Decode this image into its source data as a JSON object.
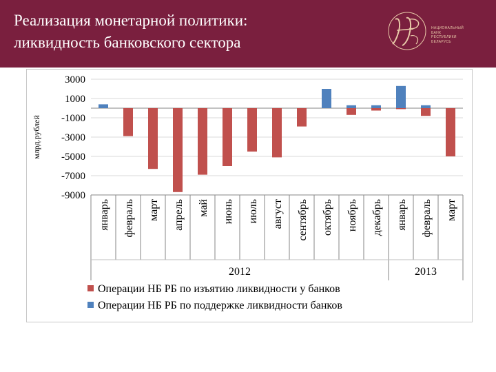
{
  "header": {
    "title_line1": "Реализация монетарной политики:",
    "title_line2": "ликвидность банковского сектора",
    "logo_lines": [
      "НАЦИОНАЛЬНЫЙ",
      "БАНК",
      "РЕСПУБЛИКИ",
      "БЕЛАРУСЬ"
    ]
  },
  "colors": {
    "header_bg": "#7a1f3e",
    "withdrawal": "#c0504d",
    "support": "#4f81bd"
  },
  "chart_data": {
    "type": "bar",
    "ylabel": "млрд.рублей",
    "ylim": [
      -9000,
      3000
    ],
    "yticks": [
      3000,
      1000,
      -1000,
      -3000,
      -5000,
      -7000,
      -9000
    ],
    "ytick_labels": [
      "3000",
      "1000",
      "-1000",
      "-3000",
      "-5000",
      "-7000",
      "-9000"
    ],
    "categories": [
      "январь",
      "февраль",
      "март",
      "апрель",
      "май",
      "июнь",
      "июль",
      "август",
      "сентябрь",
      "октябрь",
      "ноябрь",
      "декабрь",
      "январь",
      "февраль",
      "март"
    ],
    "year_groups": [
      {
        "label": "2012",
        "start": 0,
        "end": 11
      },
      {
        "label": "2013",
        "start": 12,
        "end": 14
      }
    ],
    "series": [
      {
        "name": "Операции НБ РБ по изъятию ликвидности у банков",
        "color": "#c0504d",
        "values": [
          0,
          -2900,
          -6300,
          -8700,
          -6900,
          -6000,
          -4500,
          -5100,
          -1900,
          0,
          -700,
          -250,
          -100,
          -800,
          -5000
        ]
      },
      {
        "name": "Операции НБ РБ по поддержке ликвидности банков",
        "color": "#4f81bd",
        "values": [
          400,
          0,
          0,
          0,
          0,
          0,
          0,
          0,
          0,
          2000,
          300,
          300,
          2300,
          300,
          0
        ]
      }
    ],
    "grid": true,
    "legend": "bottom"
  }
}
